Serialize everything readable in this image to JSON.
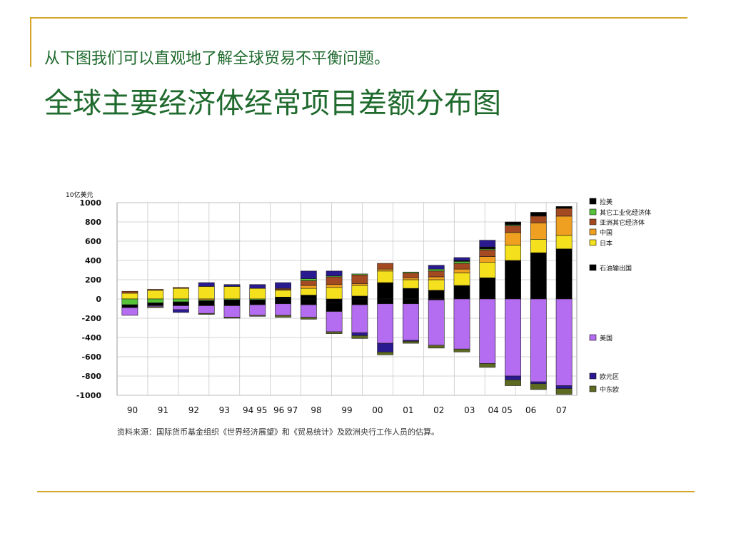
{
  "slide": {
    "intro": "从下图我们可以直观地了解全球贸易不平衡问题。",
    "title": "全球主要经济体经常项目差额分布图"
  },
  "colors": {
    "accent": "#d6a62a",
    "title_text": "#1f6a2d"
  },
  "chart_data": {
    "type": "bar",
    "stacked": true,
    "ylabel": "10亿美元",
    "ylim": [
      -1000,
      1000
    ],
    "yticks": [
      1000,
      800,
      600,
      400,
      200,
      0,
      -200,
      -400,
      -600,
      -800,
      -1000
    ],
    "grid": true,
    "legend_position": "right",
    "categories": [
      "90",
      "91",
      "92",
      "93",
      "94",
      "95",
      "96",
      "97",
      "98",
      "99",
      "00",
      "01",
      "02",
      "03",
      "04",
      "05",
      "06",
      "07"
    ],
    "x_tick_labels": [
      "90",
      "91",
      "92",
      "93",
      "94 95",
      "96 97",
      "98",
      "99",
      "00",
      "01",
      "02",
      "03",
      "04 05",
      "06",
      "07"
    ],
    "source": "资料来源：国际货币基金组织《世界经济展望》和《贸易统计》及欧洲央行工作人员的估算。",
    "series": [
      {
        "name": "石油输出国",
        "color": "#000000",
        "values": [
          0,
          0,
          0,
          0,
          0,
          0,
          20,
          40,
          -40,
          30,
          170,
          110,
          90,
          140,
          220,
          400,
          480,
          520
        ]
      },
      {
        "name": "日本",
        "color": "#f4e01c",
        "values": [
          60,
          90,
          110,
          130,
          130,
          110,
          70,
          70,
          120,
          110,
          120,
          90,
          110,
          130,
          160,
          160,
          140,
          140
        ]
      },
      {
        "name": "中国",
        "color": "#f0a020",
        "values": [
          0,
          0,
          0,
          -10,
          0,
          0,
          10,
          30,
          30,
          20,
          20,
          20,
          30,
          40,
          60,
          130,
          170,
          200
        ]
      },
      {
        "name": "亚洲其它经济体",
        "color": "#a34a22",
        "values": [
          20,
          10,
          10,
          0,
          0,
          0,
          10,
          50,
          80,
          90,
          60,
          50,
          60,
          60,
          70,
          70,
          70,
          80
        ]
      },
      {
        "name": "其它工业化经济体",
        "color": "#55c23a",
        "values": [
          -60,
          -40,
          -30,
          -10,
          -10,
          -10,
          0,
          20,
          10,
          10,
          0,
          10,
          20,
          20,
          10,
          10,
          0,
          0
        ]
      },
      {
        "name": "拉美",
        "color": "#000000",
        "values": [
          -30,
          -30,
          -40,
          -50,
          -60,
          -50,
          -50,
          -60,
          -90,
          -60,
          -50,
          -50,
          -10,
          10,
          20,
          30,
          40,
          20
        ]
      },
      {
        "name": "美国",
        "color": "#b46cf0",
        "values": [
          -80,
          -10,
          -40,
          -80,
          -120,
          -110,
          -120,
          -130,
          -210,
          -290,
          -410,
          -380,
          -470,
          -520,
          -670,
          -800,
          -860,
          -900
        ]
      },
      {
        "name": "欧元区",
        "color": "#2a1a90",
        "values": [
          0,
          0,
          -30,
          40,
          20,
          40,
          60,
          80,
          50,
          -30,
          -90,
          -10,
          40,
          30,
          70,
          -40,
          -20,
          -30
        ]
      },
      {
        "name": "中东欧",
        "color": "#5d6a22",
        "values": [
          0,
          -10,
          0,
          -10,
          -10,
          -10,
          -20,
          -20,
          -20,
          -30,
          -30,
          -20,
          -30,
          -30,
          -40,
          -60,
          -60,
          -60
        ]
      }
    ],
    "legend_left": [
      {
        "name": "拉美",
        "color": "#000000"
      },
      {
        "name": "其它工业化经济体",
        "color": "#55c23a"
      },
      {
        "name": "亚洲其它经济体",
        "color": "#a34a22"
      },
      {
        "name": "中国",
        "color": "#f0a020"
      },
      {
        "name": "日本",
        "color": "#f4e01c"
      },
      {
        "name": "石油输出国",
        "color": "#000000"
      },
      {
        "name": "美国",
        "color": "#b46cf0"
      },
      {
        "name": "欧元区",
        "color": "#2a1a90"
      },
      {
        "name": "中东欧",
        "color": "#5d6a22"
      }
    ]
  }
}
